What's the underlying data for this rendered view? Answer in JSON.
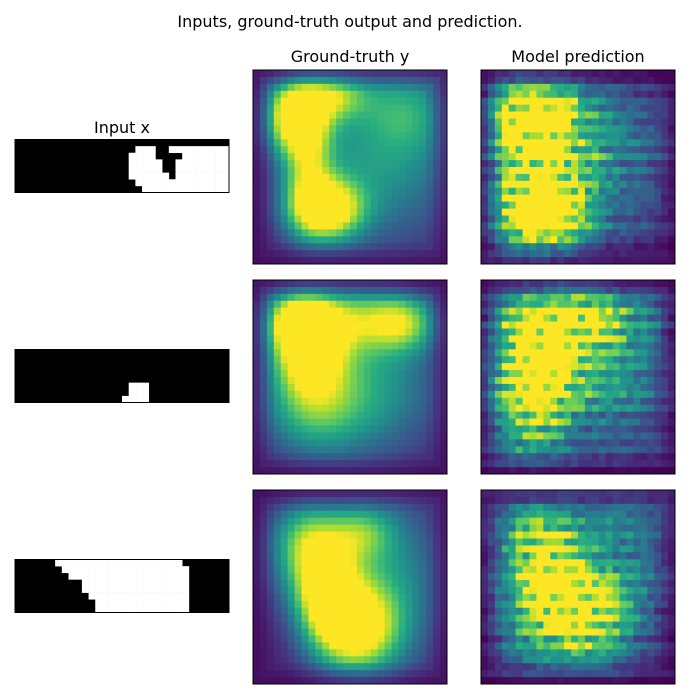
{
  "figure": {
    "title": "Inputs, ground-truth output and prediction.",
    "column_titles": [
      "Input x",
      "Ground-truth y",
      "Model prediction"
    ]
  },
  "colors": {
    "viridis_dark": "#440154",
    "viridis_mid": "#21918c",
    "viridis_light": "#fde725",
    "input_on": "#ffffff",
    "input_off": "#000000"
  },
  "chart_data": [
    {
      "type": "heatmap",
      "row": 1,
      "panel": "input",
      "title": "Input x",
      "grid": [
        32,
        8
      ],
      "white_cells": [
        [
          18,
          1
        ],
        [
          19,
          1
        ],
        [
          20,
          1
        ],
        [
          23,
          1
        ],
        [
          24,
          1
        ],
        [
          25,
          1
        ],
        [
          26,
          1
        ],
        [
          27,
          1
        ],
        [
          28,
          1
        ],
        [
          29,
          1
        ],
        [
          30,
          1
        ],
        [
          31,
          1
        ],
        [
          17,
          2
        ],
        [
          18,
          2
        ],
        [
          19,
          2
        ],
        [
          20,
          2
        ],
        [
          25,
          2
        ],
        [
          26,
          2
        ],
        [
          27,
          2
        ],
        [
          28,
          2
        ],
        [
          29,
          2
        ],
        [
          30,
          2
        ],
        [
          31,
          2
        ],
        [
          17,
          3
        ],
        [
          18,
          3
        ],
        [
          19,
          3
        ],
        [
          20,
          3
        ],
        [
          21,
          3
        ],
        [
          24,
          3
        ],
        [
          25,
          3
        ],
        [
          26,
          3
        ],
        [
          27,
          3
        ],
        [
          28,
          3
        ],
        [
          29,
          3
        ],
        [
          30,
          3
        ],
        [
          31,
          3
        ],
        [
          17,
          4
        ],
        [
          18,
          4
        ],
        [
          19,
          4
        ],
        [
          20,
          4
        ],
        [
          21,
          4
        ],
        [
          24,
          4
        ],
        [
          25,
          4
        ],
        [
          26,
          4
        ],
        [
          27,
          4
        ],
        [
          28,
          4
        ],
        [
          29,
          4
        ],
        [
          30,
          4
        ],
        [
          31,
          4
        ],
        [
          17,
          5
        ],
        [
          18,
          5
        ],
        [
          19,
          5
        ],
        [
          20,
          5
        ],
        [
          21,
          5
        ],
        [
          22,
          5
        ],
        [
          24,
          5
        ],
        [
          25,
          5
        ],
        [
          26,
          5
        ],
        [
          27,
          5
        ],
        [
          28,
          5
        ],
        [
          29,
          5
        ],
        [
          30,
          5
        ],
        [
          31,
          5
        ],
        [
          18,
          6
        ],
        [
          19,
          6
        ],
        [
          20,
          6
        ],
        [
          21,
          6
        ],
        [
          22,
          6
        ],
        [
          23,
          6
        ],
        [
          24,
          6
        ],
        [
          25,
          6
        ],
        [
          26,
          6
        ],
        [
          27,
          6
        ],
        [
          28,
          6
        ],
        [
          29,
          6
        ],
        [
          30,
          6
        ],
        [
          31,
          6
        ],
        [
          19,
          7
        ],
        [
          20,
          7
        ],
        [
          21,
          7
        ],
        [
          22,
          7
        ],
        [
          23,
          7
        ],
        [
          24,
          7
        ],
        [
          25,
          7
        ],
        [
          26,
          7
        ],
        [
          27,
          7
        ],
        [
          28,
          7
        ],
        [
          29,
          7
        ],
        [
          30,
          7
        ],
        [
          31,
          7
        ]
      ]
    },
    {
      "type": "heatmap",
      "row": 1,
      "panel": "ground_truth",
      "title": "Ground-truth y",
      "grid": [
        28,
        28
      ],
      "colormap": "viridis",
      "blobs": [
        [
          0.22,
          0.24,
          0.11,
          0.13,
          1.0
        ],
        [
          0.4,
          0.13,
          0.14,
          0.09,
          0.6
        ],
        [
          0.28,
          0.52,
          0.09,
          0.2,
          0.55
        ],
        [
          0.38,
          0.72,
          0.13,
          0.11,
          1.0
        ],
        [
          0.65,
          0.45,
          0.3,
          0.3,
          0.45
        ],
        [
          0.8,
          0.2,
          0.15,
          0.15,
          0.3
        ]
      ]
    },
    {
      "type": "heatmap",
      "row": 1,
      "panel": "prediction",
      "title": "Model prediction",
      "grid": [
        28,
        28
      ],
      "colormap": "viridis",
      "blobs": [
        [
          0.3,
          0.22,
          0.16,
          0.12,
          0.85
        ],
        [
          0.35,
          0.52,
          0.15,
          0.16,
          0.6
        ],
        [
          0.35,
          0.76,
          0.14,
          0.12,
          0.95
        ],
        [
          0.62,
          0.45,
          0.26,
          0.3,
          0.35
        ],
        [
          0.15,
          0.5,
          0.12,
          0.35,
          0.4
        ]
      ]
    },
    {
      "type": "heatmap",
      "row": 2,
      "panel": "input",
      "grid": [
        32,
        8
      ],
      "white_cells": [
        [
          17,
          5
        ],
        [
          18,
          5
        ],
        [
          19,
          5
        ],
        [
          17,
          6
        ],
        [
          18,
          6
        ],
        [
          19,
          6
        ],
        [
          16,
          7
        ],
        [
          17,
          7
        ],
        [
          18,
          7
        ],
        [
          19,
          7
        ]
      ]
    },
    {
      "type": "heatmap",
      "row": 2,
      "panel": "ground_truth",
      "grid": [
        28,
        28
      ],
      "colormap": "viridis",
      "blobs": [
        [
          0.28,
          0.33,
          0.13,
          0.16,
          1.0
        ],
        [
          0.22,
          0.2,
          0.12,
          0.1,
          0.6
        ],
        [
          0.55,
          0.2,
          0.2,
          0.12,
          0.55
        ],
        [
          0.78,
          0.22,
          0.12,
          0.1,
          0.5
        ],
        [
          0.6,
          0.55,
          0.25,
          0.25,
          0.45
        ],
        [
          0.3,
          0.65,
          0.18,
          0.18,
          0.5
        ]
      ]
    },
    {
      "type": "heatmap",
      "row": 2,
      "panel": "prediction",
      "grid": [
        28,
        28
      ],
      "colormap": "viridis",
      "blobs": [
        [
          0.3,
          0.38,
          0.18,
          0.22,
          0.9
        ],
        [
          0.55,
          0.2,
          0.25,
          0.12,
          0.6
        ],
        [
          0.25,
          0.7,
          0.15,
          0.2,
          0.5
        ],
        [
          0.7,
          0.55,
          0.2,
          0.25,
          0.35
        ]
      ]
    },
    {
      "type": "heatmap",
      "row": 3,
      "panel": "input",
      "grid": [
        32,
        8
      ],
      "white_cells": [
        [
          6,
          0
        ],
        [
          7,
          0
        ],
        [
          8,
          0
        ],
        [
          9,
          0
        ],
        [
          10,
          0
        ],
        [
          11,
          0
        ],
        [
          12,
          0
        ],
        [
          13,
          0
        ],
        [
          14,
          0
        ],
        [
          15,
          0
        ],
        [
          16,
          0
        ],
        [
          17,
          0
        ],
        [
          18,
          0
        ],
        [
          19,
          0
        ],
        [
          20,
          0
        ],
        [
          21,
          0
        ],
        [
          22,
          0
        ],
        [
          23,
          0
        ],
        [
          24,
          0
        ],
        [
          7,
          1
        ],
        [
          8,
          1
        ],
        [
          9,
          1
        ],
        [
          10,
          1
        ],
        [
          11,
          1
        ],
        [
          12,
          1
        ],
        [
          13,
          1
        ],
        [
          14,
          1
        ],
        [
          15,
          1
        ],
        [
          16,
          1
        ],
        [
          17,
          1
        ],
        [
          18,
          1
        ],
        [
          19,
          1
        ],
        [
          20,
          1
        ],
        [
          21,
          1
        ],
        [
          22,
          1
        ],
        [
          23,
          1
        ],
        [
          24,
          1
        ],
        [
          25,
          1
        ],
        [
          8,
          2
        ],
        [
          9,
          2
        ],
        [
          10,
          2
        ],
        [
          11,
          2
        ],
        [
          12,
          2
        ],
        [
          13,
          2
        ],
        [
          14,
          2
        ],
        [
          15,
          2
        ],
        [
          16,
          2
        ],
        [
          17,
          2
        ],
        [
          18,
          2
        ],
        [
          19,
          2
        ],
        [
          20,
          2
        ],
        [
          21,
          2
        ],
        [
          22,
          2
        ],
        [
          23,
          2
        ],
        [
          24,
          2
        ],
        [
          25,
          2
        ],
        [
          10,
          3
        ],
        [
          11,
          3
        ],
        [
          12,
          3
        ],
        [
          13,
          3
        ],
        [
          14,
          3
        ],
        [
          15,
          3
        ],
        [
          16,
          3
        ],
        [
          17,
          3
        ],
        [
          18,
          3
        ],
        [
          19,
          3
        ],
        [
          20,
          3
        ],
        [
          21,
          3
        ],
        [
          22,
          3
        ],
        [
          23,
          3
        ],
        [
          24,
          3
        ],
        [
          25,
          3
        ],
        [
          10,
          4
        ],
        [
          11,
          4
        ],
        [
          12,
          4
        ],
        [
          13,
          4
        ],
        [
          14,
          4
        ],
        [
          15,
          4
        ],
        [
          16,
          4
        ],
        [
          17,
          4
        ],
        [
          18,
          4
        ],
        [
          19,
          4
        ],
        [
          20,
          4
        ],
        [
          21,
          4
        ],
        [
          22,
          4
        ],
        [
          23,
          4
        ],
        [
          24,
          4
        ],
        [
          25,
          4
        ],
        [
          11,
          5
        ],
        [
          12,
          5
        ],
        [
          13,
          5
        ],
        [
          14,
          5
        ],
        [
          15,
          5
        ],
        [
          16,
          5
        ],
        [
          17,
          5
        ],
        [
          18,
          5
        ],
        [
          19,
          5
        ],
        [
          20,
          5
        ],
        [
          21,
          5
        ],
        [
          22,
          5
        ],
        [
          23,
          5
        ],
        [
          24,
          5
        ],
        [
          25,
          5
        ],
        [
          12,
          6
        ],
        [
          13,
          6
        ],
        [
          14,
          6
        ],
        [
          15,
          6
        ],
        [
          16,
          6
        ],
        [
          17,
          6
        ],
        [
          18,
          6
        ],
        [
          19,
          6
        ],
        [
          20,
          6
        ],
        [
          21,
          6
        ],
        [
          22,
          6
        ],
        [
          23,
          6
        ],
        [
          24,
          6
        ],
        [
          25,
          6
        ],
        [
          12,
          7
        ],
        [
          13,
          7
        ],
        [
          14,
          7
        ],
        [
          15,
          7
        ],
        [
          16,
          7
        ],
        [
          17,
          7
        ],
        [
          18,
          7
        ],
        [
          19,
          7
        ],
        [
          20,
          7
        ],
        [
          21,
          7
        ],
        [
          22,
          7
        ],
        [
          23,
          7
        ],
        [
          24,
          7
        ],
        [
          25,
          7
        ]
      ]
    },
    {
      "type": "heatmap",
      "row": 3,
      "panel": "ground_truth",
      "grid": [
        28,
        28
      ],
      "colormap": "viridis",
      "blobs": [
        [
          0.52,
          0.72,
          0.16,
          0.16,
          1.0
        ],
        [
          0.38,
          0.55,
          0.1,
          0.15,
          0.55
        ],
        [
          0.28,
          0.25,
          0.13,
          0.14,
          0.6
        ],
        [
          0.55,
          0.22,
          0.12,
          0.1,
          0.45
        ],
        [
          0.7,
          0.45,
          0.2,
          0.3,
          0.4
        ],
        [
          0.35,
          0.45,
          0.15,
          0.15,
          0.5
        ]
      ]
    },
    {
      "type": "heatmap",
      "row": 3,
      "panel": "prediction",
      "grid": [
        28,
        28
      ],
      "colormap": "viridis",
      "blobs": [
        [
          0.5,
          0.68,
          0.18,
          0.16,
          0.85
        ],
        [
          0.3,
          0.25,
          0.15,
          0.14,
          0.6
        ],
        [
          0.4,
          0.47,
          0.12,
          0.14,
          0.5
        ],
        [
          0.7,
          0.35,
          0.2,
          0.3,
          0.35
        ],
        [
          0.2,
          0.6,
          0.12,
          0.25,
          0.3
        ]
      ]
    }
  ]
}
